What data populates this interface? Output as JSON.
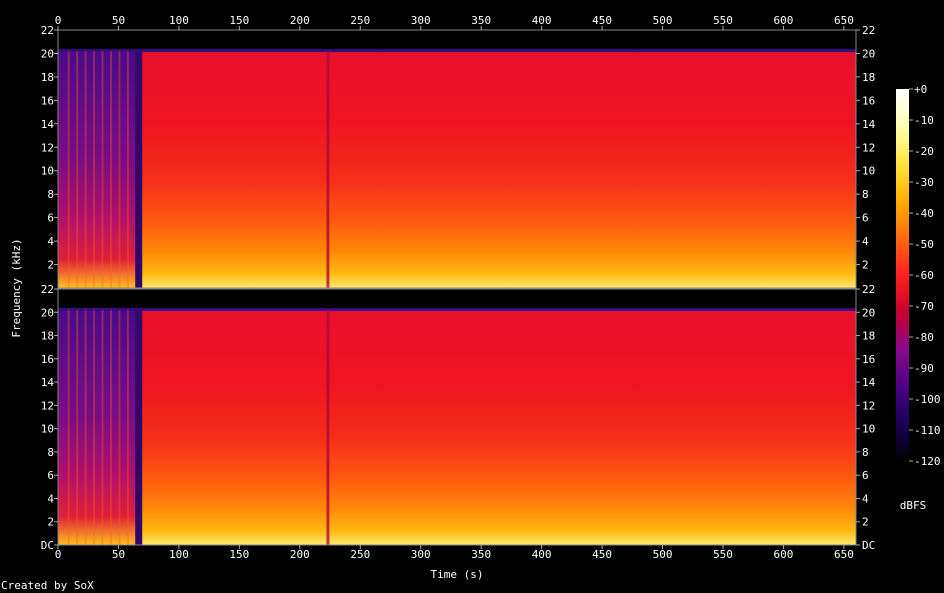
{
  "chart_data": {
    "type": "heatmap",
    "title": "",
    "xlabel": "Time (s)",
    "ylabel": "Frequency (kHz)",
    "xlim": [
      0,
      660
    ],
    "ylim": [
      0,
      22
    ],
    "x_ticks": [
      "0",
      "50",
      "100",
      "150",
      "200",
      "250",
      "300",
      "350",
      "400",
      "450",
      "500",
      "550",
      "600",
      "650"
    ],
    "y_ticks_upper": [
      "2",
      "4",
      "6",
      "8",
      "10",
      "12",
      "14",
      "16",
      "18",
      "20",
      "22"
    ],
    "y_ticks_lower": [
      "DC",
      "2",
      "4",
      "6",
      "8",
      "10",
      "12",
      "14",
      "16",
      "18",
      "20",
      "22"
    ],
    "channels": 2,
    "lowpass_cutoff_khz": 20.2,
    "intro_end_s": 68,
    "dark_line_s": 222,
    "colorbar": {
      "unit": "dBFS",
      "range": [
        -120,
        0
      ],
      "ticks": [
        "+0",
        "-10",
        "-20",
        "-30",
        "-40",
        "-50",
        "-60",
        "-70",
        "-80",
        "-90",
        "-100",
        "-110",
        "-120"
      ],
      "colors": [
        "#000000",
        "#1a0058",
        "#4b0082",
        "#8a0a8e",
        "#c8002e",
        "#ff2020",
        "#ff6a10",
        "#ffae00",
        "#ffe640",
        "#ffffb0",
        "#ffffff"
      ]
    }
  },
  "footer": "Created by SoX"
}
